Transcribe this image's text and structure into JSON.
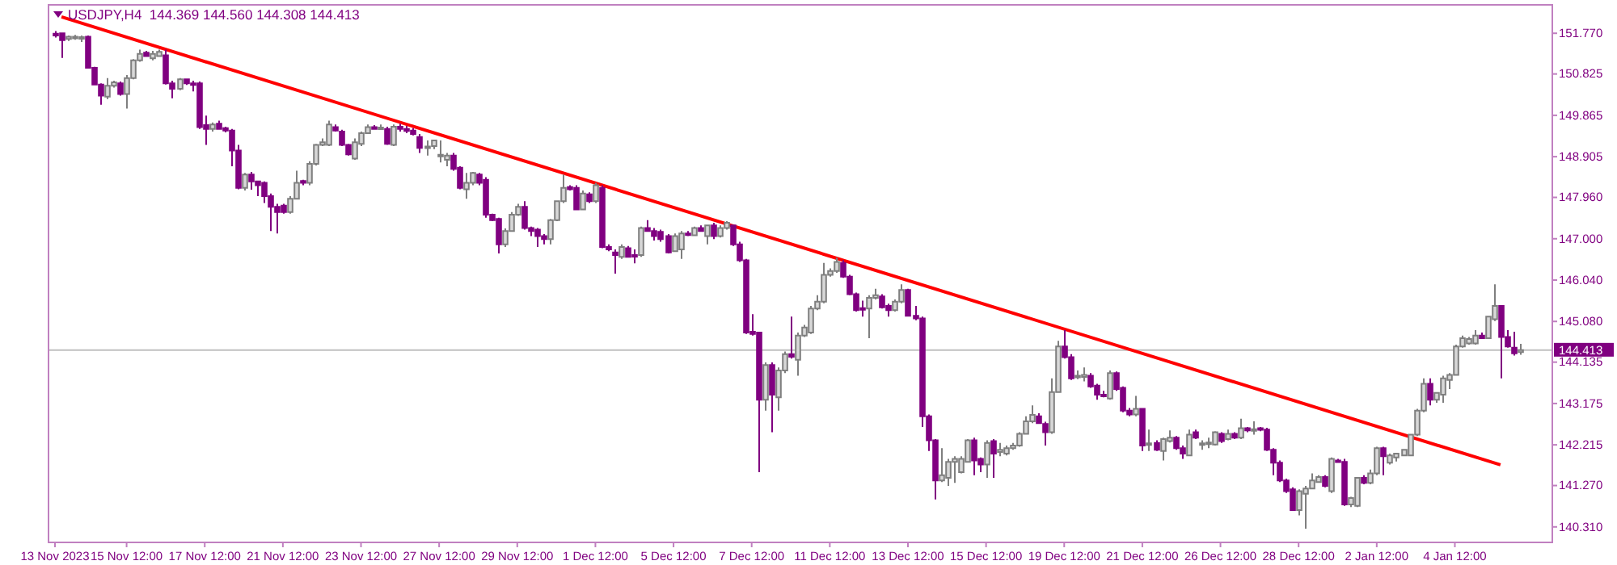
{
  "chart_data": {
    "type": "candlestick",
    "title": "USDJPY,H4  144.369 144.560 144.308 144.413",
    "ylim": [
      139.95,
      152.43
    ],
    "categories": [
      "13 Nov 2023",
      null,
      null,
      null,
      null,
      null,
      null,
      null,
      null,
      null,
      null,
      "15 Nov 12:00",
      null,
      null,
      null,
      null,
      null,
      null,
      null,
      null,
      null,
      null,
      null,
      "17 Nov 12:00",
      null,
      null,
      null,
      null,
      null,
      null,
      null,
      null,
      null,
      null,
      null,
      "21 Nov 12:00",
      null,
      null,
      null,
      null,
      null,
      null,
      null,
      null,
      null,
      null,
      null,
      "23 Nov 12:00",
      null,
      null,
      null,
      null,
      null,
      null,
      null,
      null,
      null,
      null,
      null,
      "27 Nov 12:00",
      null,
      null,
      null,
      null,
      null,
      null,
      null,
      null,
      null,
      null,
      null,
      "29 Nov 12:00",
      null,
      null,
      null,
      null,
      null,
      null,
      null,
      null,
      null,
      null,
      null,
      "1 Dec 12:00",
      null,
      null,
      null,
      null,
      null,
      null,
      null,
      null,
      null,
      null,
      null,
      "5 Dec 12:00",
      null,
      null,
      null,
      null,
      null,
      null,
      null,
      null,
      null,
      null,
      null,
      "7 Dec 12:00",
      null,
      null,
      null,
      null,
      null,
      null,
      null,
      null,
      null,
      null,
      null,
      "11 Dec 12:00",
      null,
      null,
      null,
      null,
      null,
      null,
      null,
      null,
      null,
      null,
      null,
      "13 Dec 12:00",
      null,
      null,
      null,
      null,
      null,
      null,
      null,
      null,
      null,
      null,
      null,
      "15 Dec 12:00",
      null,
      null,
      null,
      null,
      null,
      null,
      null,
      null,
      null,
      null,
      null,
      "19 Dec 12:00",
      null,
      null,
      null,
      null,
      null,
      null,
      null,
      null,
      null,
      null,
      null,
      "21 Dec 12:00",
      null,
      null,
      null,
      null,
      null,
      null,
      null,
      null,
      null,
      null,
      null,
      "26 Dec 12:00",
      null,
      null,
      null,
      null,
      null,
      null,
      null,
      null,
      null,
      null,
      null,
      "28 Dec 12:00",
      null,
      null,
      null,
      null,
      null,
      null,
      null,
      null,
      null,
      null,
      null,
      "2 Jan 12:00",
      null,
      null,
      null,
      null,
      null,
      null,
      null,
      null,
      null,
      null,
      null,
      "4 Jan 12:00",
      null,
      null,
      null,
      null,
      null,
      null,
      null,
      null,
      null,
      null
    ],
    "yticks": [
      {
        "value": 151.77,
        "label": "151.770"
      },
      {
        "value": 150.825,
        "label": "150.825"
      },
      {
        "value": 149.865,
        "label": "149.865"
      },
      {
        "value": 148.905,
        "label": "148.905"
      },
      {
        "value": 147.96,
        "label": "147.960"
      },
      {
        "value": 147.0,
        "label": "147.000"
      },
      {
        "value": 146.04,
        "label": "146.040"
      },
      {
        "value": 145.08,
        "label": "145.080"
      },
      {
        "value": 144.135,
        "label": "144.135"
      },
      {
        "value": 143.175,
        "label": "143.175"
      },
      {
        "value": 142.215,
        "label": "142.215"
      },
      {
        "value": 141.27,
        "label": "141.270"
      },
      {
        "value": 140.31,
        "label": "140.310"
      }
    ],
    "ref_lines": [
      {
        "axis": "y",
        "value": 144.413,
        "label": "144.413",
        "color": "#c0c0c0"
      }
    ],
    "series": [
      {
        "colors": [
          "#800080",
          "#800080",
          "#d8d8d8",
          "#d8d8d8",
          "#d8d8d8",
          "#800080",
          "#800080",
          "#800080",
          "#d8d8d8",
          "#d8d8d8",
          "#800080",
          "#d8d8d8",
          "#d8d8d8",
          "#d8d8d8",
          "#800080",
          "#d8d8d8",
          "#d8d8d8",
          "#800080",
          "#800080",
          "#d8d8d8",
          "#800080",
          "#800080",
          "#800080",
          "#800080",
          "#d8d8d8",
          "#800080",
          "#800080",
          "#800080",
          "#800080",
          "#d8d8d8",
          "#800080",
          "#800080",
          "#800080",
          "#800080",
          "#800080",
          "#800080",
          "#d8d8d8",
          "#d8d8d8",
          "#800080",
          "#d8d8d8",
          "#d8d8d8",
          "#d8d8d8",
          "#d8d8d8",
          "#800080",
          "#800080",
          "#800080",
          "#d8d8d8",
          "#d8d8d8",
          "#d8d8d8",
          "#800080",
          "#d8d8d8",
          "#800080",
          "#d8d8d8",
          "#800080",
          "#800080",
          "#800080",
          "#800080",
          "#d8d8d8",
          "#d8d8d8",
          "#d8d8d8",
          "#d8d8d8",
          "#800080",
          "#800080",
          "#d8d8d8",
          "#d8d8d8",
          "#800080",
          "#800080",
          "#800080",
          "#800080",
          "#d8d8d8",
          "#d8d8d8",
          "#d8d8d8",
          "#800080",
          "#800080",
          "#800080",
          "#800080",
          "#d8d8d8",
          "#d8d8d8",
          "#d8d8d8",
          "#800080",
          "#800080",
          "#d8d8d8",
          "#800080",
          "#d8d8d8",
          "#800080",
          "#800080",
          "#800080",
          "#d8d8d8",
          "#800080",
          "#800080",
          "#d8d8d8",
          "#800080",
          "#800080",
          "#800080",
          "#800080",
          "#d8d8d8",
          "#d8d8d8",
          "#800080",
          "#d8d8d8",
          "#800080",
          "#d8d8d8",
          "#800080",
          "#d8d8d8",
          "#d8d8d8",
          "#800080",
          "#800080",
          "#800080",
          "#800080",
          "#800080",
          "#d8d8d8",
          "#800080",
          "#d8d8d8",
          "#d8d8d8",
          "#800080",
          "#d8d8d8",
          "#d8d8d8",
          "#d8d8d8",
          "#d8d8d8",
          "#d8d8d8",
          "#d8d8d8",
          "#d8d8d8",
          "#800080",
          "#800080",
          "#800080",
          "#800080",
          "#d8d8d8",
          "#d8d8d8",
          "#800080",
          "#800080",
          "#d8d8d8",
          "#d8d8d8",
          "#800080",
          "#800080",
          "#800080",
          "#800080",
          "#800080",
          "#d8d8d8",
          "#d8d8d8",
          "#d8d8d8",
          "#d8d8d8",
          "#d8d8d8",
          "#800080",
          "#800080",
          "#d8d8d8",
          "#800080",
          "#d8d8d8",
          "#d8d8d8",
          "#d8d8d8",
          "#d8d8d8",
          "#d8d8d8",
          "#d8d8d8",
          "#800080",
          "#800080",
          "#d8d8d8",
          "#d8d8d8",
          "#800080",
          "#800080",
          "#d8d8d8",
          "#d8d8d8",
          "#800080",
          "#800080",
          "#800080",
          "#d8d8d8",
          "#800080",
          "#800080",
          "#800080",
          "#d8d8d8",
          "#800080",
          "#d8d8d8",
          "#800080",
          "#d8d8d8",
          "#d8d8d8",
          "#800080",
          "#800080",
          "#d8d8d8",
          "#800080",
          "#d8d8d8",
          "#d8d8d8",
          "#d8d8d8",
          "#800080",
          "#d8d8d8",
          "#800080",
          "#d8d8d8",
          "#800080",
          "#d8d8d8",
          "#800080",
          "#800080",
          "#800080",
          "#800080",
          "#800080",
          "#800080",
          "#d8d8d8",
          "#d8d8d8",
          "#d8d8d8",
          "#d8d8d8",
          "#800080",
          "#d8d8d8",
          "#800080",
          "#800080",
          "#d8d8d8",
          "#d8d8d8",
          "#800080",
          "#d8d8d8",
          "#d8d8d8",
          "#800080",
          "#d8d8d8",
          "#d8d8d8",
          "#d8d8d8",
          "#d8d8d8",
          "#d8d8d8",
          "#d8d8d8",
          "#800080",
          "#d8d8d8",
          "#d8d8d8",
          "#d8d8d8",
          "#d8d8d8",
          "#d8d8d8",
          "#d8d8d8",
          "#d8d8d8",
          "#800080",
          "#d8d8d8",
          "#d8d8d8",
          "#800080",
          "#800080",
          "#800080",
          "#d8d8d8"
        ],
        "ohlc": [
          [
            151.76,
            151.82,
            151.67,
            151.72
          ],
          [
            151.77,
            151.79,
            151.2,
            151.61
          ],
          [
            151.64,
            151.72,
            151.59,
            151.69
          ],
          [
            151.67,
            151.73,
            151.62,
            151.69
          ],
          [
            151.67,
            151.72,
            151.57,
            151.68
          ],
          [
            151.69,
            151.72,
            150.95,
            150.97
          ],
          [
            150.97,
            150.99,
            150.57,
            150.58
          ],
          [
            150.58,
            150.61,
            150.11,
            150.32
          ],
          [
            150.3,
            150.73,
            150.24,
            150.55
          ],
          [
            150.55,
            150.67,
            150.51,
            150.63
          ],
          [
            150.61,
            150.65,
            150.32,
            150.36
          ],
          [
            150.36,
            150.8,
            150.02,
            150.73
          ],
          [
            150.73,
            151.17,
            150.7,
            151.14
          ],
          [
            151.14,
            151.39,
            151.11,
            151.29
          ],
          [
            151.32,
            151.36,
            151.22,
            151.24
          ],
          [
            151.19,
            151.36,
            151.14,
            151.29
          ],
          [
            151.24,
            151.39,
            151.22,
            151.34
          ],
          [
            151.26,
            151.39,
            150.58,
            150.61
          ],
          [
            150.61,
            150.67,
            150.26,
            150.48
          ],
          [
            150.48,
            150.73,
            150.45,
            150.7
          ],
          [
            150.7,
            150.72,
            150.57,
            150.61
          ],
          [
            150.61,
            150.67,
            150.42,
            150.6
          ],
          [
            150.61,
            150.65,
            149.55,
            149.59
          ],
          [
            149.64,
            149.86,
            149.18,
            149.55
          ],
          [
            149.55,
            149.7,
            149.49,
            149.65
          ],
          [
            149.67,
            149.74,
            149.53,
            149.55
          ],
          [
            149.57,
            149.6,
            149.47,
            149.51
          ],
          [
            149.51,
            149.55,
            148.68,
            149.05
          ],
          [
            149.05,
            149.18,
            148.15,
            148.18
          ],
          [
            148.18,
            148.53,
            148.12,
            148.49
          ],
          [
            148.49,
            148.55,
            148.14,
            148.33
          ],
          [
            148.33,
            148.35,
            147.99,
            148.24
          ],
          [
            148.3,
            148.33,
            147.83,
            147.99
          ],
          [
            147.99,
            148.05,
            147.18,
            147.74
          ],
          [
            147.74,
            147.81,
            147.12,
            147.62
          ],
          [
            147.77,
            147.81,
            147.58,
            147.62
          ],
          [
            147.62,
            147.99,
            147.58,
            147.93
          ],
          [
            147.93,
            148.58,
            147.91,
            148.3
          ],
          [
            148.34,
            148.37,
            148.24,
            148.3
          ],
          [
            148.3,
            148.8,
            148.24,
            148.74
          ],
          [
            148.74,
            149.2,
            148.7,
            149.18
          ],
          [
            149.18,
            149.33,
            149.15,
            149.24
          ],
          [
            149.18,
            149.74,
            149.15,
            149.65
          ],
          [
            149.59,
            149.65,
            149.49,
            149.51
          ],
          [
            149.49,
            149.53,
            149.15,
            149.18
          ],
          [
            149.18,
            149.2,
            148.93,
            148.96
          ],
          [
            148.86,
            149.33,
            148.83,
            149.24
          ],
          [
            149.2,
            149.49,
            149.15,
            149.45
          ],
          [
            149.45,
            149.65,
            149.43,
            149.59
          ],
          [
            149.59,
            149.64,
            149.53,
            149.55
          ],
          [
            149.57,
            149.65,
            149.53,
            149.58
          ],
          [
            149.55,
            149.6,
            149.18,
            149.2
          ],
          [
            149.18,
            149.65,
            149.15,
            149.6
          ],
          [
            149.6,
            149.67,
            149.49,
            149.55
          ],
          [
            149.55,
            149.62,
            149.45,
            149.5
          ],
          [
            149.51,
            149.57,
            149.4,
            149.43
          ],
          [
            149.36,
            149.43,
            148.99,
            149.11
          ],
          [
            149.11,
            149.28,
            148.93,
            149.14
          ],
          [
            149.15,
            149.3,
            149.08,
            149.28
          ],
          [
            148.93,
            149.28,
            148.77,
            148.95
          ],
          [
            148.83,
            148.99,
            148.68,
            148.93
          ],
          [
            148.93,
            148.99,
            148.58,
            148.62
          ],
          [
            148.65,
            148.68,
            148.15,
            148.18
          ],
          [
            148.15,
            148.53,
            147.93,
            148.3
          ],
          [
            148.3,
            148.55,
            148.24,
            148.53
          ],
          [
            148.49,
            148.53,
            148.24,
            148.3
          ],
          [
            148.37,
            148.43,
            147.49,
            147.56
          ],
          [
            147.56,
            147.58,
            147.41,
            147.43
          ],
          [
            147.46,
            147.49,
            146.66,
            146.87
          ],
          [
            146.87,
            147.24,
            146.81,
            147.18
          ],
          [
            147.18,
            147.62,
            147.16,
            147.56
          ],
          [
            147.56,
            147.81,
            147.53,
            147.74
          ],
          [
            147.74,
            147.87,
            147.21,
            147.25
          ],
          [
            147.25,
            147.28,
            147.06,
            147.18
          ],
          [
            147.21,
            147.25,
            146.81,
            147.06
          ],
          [
            147.06,
            147.11,
            146.87,
            146.99
          ],
          [
            146.99,
            147.46,
            146.87,
            147.43
          ],
          [
            147.43,
            147.89,
            147.41,
            147.87
          ],
          [
            147.87,
            148.49,
            147.83,
            148.18
          ],
          [
            148.2,
            148.24,
            148.12,
            148.15
          ],
          [
            148.18,
            148.24,
            147.66,
            147.68
          ],
          [
            147.68,
            148.12,
            147.66,
            148.05
          ],
          [
            148.03,
            148.08,
            147.83,
            147.87
          ],
          [
            147.87,
            148.3,
            147.83,
            148.24
          ],
          [
            148.18,
            148.24,
            146.78,
            146.81
          ],
          [
            146.81,
            146.87,
            146.71,
            146.75
          ],
          [
            146.68,
            146.75,
            146.19,
            146.62
          ],
          [
            146.58,
            146.87,
            146.53,
            146.81
          ],
          [
            146.78,
            146.83,
            146.56,
            146.58
          ],
          [
            146.62,
            146.75,
            146.43,
            146.61
          ],
          [
            146.62,
            147.28,
            146.58,
            147.25
          ],
          [
            147.25,
            147.43,
            147.16,
            147.18
          ],
          [
            147.18,
            147.25,
            146.96,
            147.06
          ],
          [
            147.16,
            147.21,
            146.93,
            146.99
          ],
          [
            147.06,
            147.11,
            146.66,
            146.68
          ],
          [
            146.71,
            147.12,
            146.7,
            147.06
          ],
          [
            146.75,
            147.18,
            146.53,
            147.12
          ],
          [
            147.12,
            147.18,
            147.06,
            147.1
          ],
          [
            147.08,
            147.28,
            147.06,
            147.25
          ],
          [
            147.25,
            147.31,
            147.16,
            147.18
          ],
          [
            147.06,
            147.33,
            146.87,
            147.31
          ],
          [
            147.31,
            147.37,
            146.99,
            147.06
          ],
          [
            147.06,
            147.31,
            147.03,
            147.25
          ],
          [
            147.25,
            147.41,
            147.21,
            147.37
          ],
          [
            147.31,
            147.33,
            146.83,
            146.87
          ],
          [
            146.87,
            146.93,
            146.46,
            146.5
          ],
          [
            146.5,
            146.53,
            144.79,
            144.82
          ],
          [
            144.84,
            145.25,
            144.75,
            144.79
          ],
          [
            144.82,
            144.84,
            141.58,
            143.26
          ],
          [
            143.26,
            144.13,
            143.01,
            144.07
          ],
          [
            144.07,
            144.13,
            142.51,
            143.38
          ],
          [
            143.32,
            144.01,
            143.01,
            143.94
          ],
          [
            143.94,
            144.38,
            143.88,
            144.32
          ],
          [
            144.32,
            145.19,
            144.22,
            144.26
          ],
          [
            144.19,
            144.82,
            143.82,
            144.75
          ],
          [
            144.75,
            145.0,
            144.72,
            144.94
          ],
          [
            144.82,
            145.44,
            144.79,
            145.38
          ],
          [
            145.38,
            145.69,
            145.34,
            145.54
          ],
          [
            145.54,
            146.44,
            145.5,
            146.16
          ],
          [
            146.16,
            146.31,
            146.12,
            146.25
          ],
          [
            146.25,
            146.56,
            146.21,
            146.46
          ],
          [
            146.44,
            146.5,
            146.09,
            146.12
          ],
          [
            146.12,
            146.16,
            145.69,
            145.71
          ],
          [
            145.71,
            145.75,
            145.31,
            145.34
          ],
          [
            145.39,
            145.56,
            145.19,
            145.36
          ],
          [
            145.38,
            145.69,
            144.69,
            145.63
          ],
          [
            145.63,
            145.84,
            145.59,
            145.69
          ],
          [
            145.66,
            145.71,
            145.38,
            145.41
          ],
          [
            145.44,
            145.49,
            145.19,
            145.34
          ],
          [
            145.34,
            145.59,
            145.31,
            145.54
          ],
          [
            145.54,
            145.94,
            145.5,
            145.81
          ],
          [
            145.81,
            145.84,
            145.19,
            145.21
          ],
          [
            145.21,
            145.44,
            145.11,
            145.15
          ],
          [
            145.15,
            145.19,
            142.63,
            142.88
          ],
          [
            142.88,
            142.92,
            142.07,
            142.32
          ],
          [
            142.32,
            142.35,
            140.95,
            141.39
          ],
          [
            141.39,
            142.14,
            141.35,
            141.51
          ],
          [
            141.45,
            141.89,
            141.26,
            141.82
          ],
          [
            141.82,
            141.95,
            141.33,
            141.89
          ],
          [
            141.58,
            141.95,
            141.55,
            141.89
          ],
          [
            141.82,
            142.35,
            141.8,
            142.32
          ],
          [
            142.32,
            142.38,
            141.51,
            141.85
          ],
          [
            141.89,
            141.92,
            141.58,
            141.76
          ],
          [
            141.76,
            142.32,
            141.45,
            142.26
          ],
          [
            142.3,
            142.35,
            141.45,
            142.01
          ],
          [
            142.05,
            142.26,
            141.95,
            142.1
          ],
          [
            142.01,
            142.2,
            141.97,
            142.14
          ],
          [
            142.14,
            142.26,
            142.1,
            142.2
          ],
          [
            142.2,
            142.51,
            142.17,
            142.47
          ],
          [
            142.47,
            142.88,
            142.45,
            142.76
          ],
          [
            142.76,
            143.13,
            142.72,
            142.91
          ],
          [
            142.88,
            142.95,
            142.7,
            142.72
          ],
          [
            142.7,
            142.75,
            142.2,
            142.51
          ],
          [
            142.51,
            143.76,
            142.47,
            143.44
          ],
          [
            143.44,
            144.63,
            143.42,
            144.5
          ],
          [
            144.5,
            144.88,
            144.22,
            144.25
          ],
          [
            144.25,
            144.32,
            143.72,
            143.76
          ],
          [
            143.79,
            143.94,
            143.74,
            143.82
          ],
          [
            143.79,
            144.01,
            143.69,
            143.84
          ],
          [
            143.82,
            143.88,
            143.54,
            143.57
          ],
          [
            143.59,
            143.63,
            143.26,
            143.38
          ],
          [
            143.38,
            143.47,
            143.32,
            143.34
          ],
          [
            143.29,
            143.94,
            143.26,
            143.88
          ],
          [
            143.88,
            143.92,
            143.47,
            143.51
          ],
          [
            143.54,
            143.57,
            142.97,
            143.01
          ],
          [
            143.01,
            143.07,
            142.88,
            142.92
          ],
          [
            142.92,
            143.35,
            142.88,
            143.05
          ],
          [
            143.05,
            143.07,
            142.07,
            142.2
          ],
          [
            142.22,
            142.57,
            142.07,
            142.25
          ],
          [
            142.26,
            142.32,
            142.07,
            142.1
          ],
          [
            142.07,
            142.38,
            141.85,
            142.35
          ],
          [
            142.3,
            142.55,
            142.27,
            142.38
          ],
          [
            142.38,
            142.42,
            142.1,
            142.14
          ],
          [
            142.14,
            142.2,
            141.89,
            142.01
          ],
          [
            141.97,
            142.57,
            141.95,
            142.45
          ],
          [
            142.51,
            142.57,
            142.35,
            142.38
          ],
          [
            142.22,
            142.32,
            142.1,
            142.25
          ],
          [
            142.25,
            142.38,
            142.14,
            142.27
          ],
          [
            142.22,
            142.53,
            142.2,
            142.51
          ],
          [
            142.47,
            142.51,
            142.26,
            142.3
          ],
          [
            142.35,
            142.57,
            142.32,
            142.47
          ],
          [
            142.47,
            142.51,
            142.35,
            142.38
          ],
          [
            142.38,
            142.82,
            142.35,
            142.6
          ],
          [
            142.6,
            142.63,
            142.51,
            142.55
          ],
          [
            142.57,
            142.76,
            142.45,
            142.58
          ],
          [
            142.6,
            142.63,
            142.53,
            142.57
          ],
          [
            142.57,
            142.61,
            142.07,
            142.1
          ],
          [
            142.1,
            142.14,
            141.51,
            141.8
          ],
          [
            141.8,
            141.85,
            141.35,
            141.39
          ],
          [
            141.39,
            141.43,
            141.1,
            141.14
          ],
          [
            141.18,
            141.23,
            140.68,
            140.7
          ],
          [
            140.7,
            141.18,
            140.58,
            141.14
          ],
          [
            141.08,
            141.26,
            140.27,
            141.2
          ],
          [
            141.2,
            141.55,
            141.18,
            141.39
          ],
          [
            141.35,
            141.51,
            141.33,
            141.47
          ],
          [
            141.47,
            141.51,
            141.23,
            141.26
          ],
          [
            141.14,
            141.92,
            141.1,
            141.89
          ],
          [
            141.85,
            141.89,
            141.8,
            141.82
          ],
          [
            141.82,
            141.89,
            140.8,
            140.83
          ],
          [
            140.83,
            141.01,
            140.77,
            140.98
          ],
          [
            140.8,
            141.47,
            140.77,
            141.45
          ],
          [
            141.45,
            141.51,
            141.3,
            141.33
          ],
          [
            141.33,
            141.64,
            141.3,
            141.55
          ],
          [
            141.55,
            142.17,
            141.51,
            142.14
          ],
          [
            142.14,
            142.17,
            141.51,
            141.95
          ],
          [
            141.8,
            142.01,
            141.76,
            141.97
          ],
          [
            141.92,
            142.01,
            141.83,
            142.01
          ],
          [
            141.97,
            142.12,
            141.95,
            142.1
          ],
          [
            141.97,
            142.47,
            141.95,
            142.45
          ],
          [
            142.45,
            143.05,
            142.42,
            143.01
          ],
          [
            143.01,
            143.76,
            142.97,
            143.63
          ],
          [
            143.63,
            143.76,
            143.13,
            143.26
          ],
          [
            143.26,
            143.44,
            143.19,
            143.42
          ],
          [
            143.38,
            143.82,
            143.19,
            143.76
          ],
          [
            143.72,
            143.88,
            143.51,
            143.84
          ],
          [
            143.84,
            144.54,
            143.82,
            144.5
          ],
          [
            144.5,
            144.75,
            144.47,
            144.69
          ],
          [
            144.57,
            144.72,
            144.54,
            144.67
          ],
          [
            144.57,
            144.88,
            144.54,
            144.75
          ],
          [
            144.75,
            144.82,
            144.67,
            144.69
          ],
          [
            144.69,
            145.21,
            144.67,
            145.19
          ],
          [
            145.13,
            145.94,
            145.09,
            145.44
          ],
          [
            145.44,
            145.46,
            143.76,
            144.72
          ],
          [
            144.72,
            144.88,
            144.47,
            144.5
          ],
          [
            144.47,
            144.84,
            144.29,
            144.34
          ],
          [
            144.369,
            144.56,
            144.308,
            144.413
          ]
        ]
      },
      {
        "type": "line",
        "color": "#ff0000",
        "values": [
          null,
          152.15,
          null,
          null,
          null,
          null,
          null,
          null,
          null,
          null,
          null,
          null,
          null,
          null,
          null,
          null,
          null,
          null,
          null,
          null,
          null,
          null,
          null,
          null,
          null,
          null,
          null,
          null,
          null,
          null,
          null,
          null,
          null,
          null,
          null,
          null,
          null,
          null,
          null,
          null,
          null,
          null,
          null,
          null,
          null,
          null,
          null,
          null,
          null,
          null,
          null,
          null,
          null,
          null,
          null,
          null,
          null,
          null,
          null,
          null,
          null,
          null,
          null,
          null,
          null,
          null,
          null,
          null,
          null,
          null,
          null,
          null,
          null,
          null,
          null,
          null,
          null,
          null,
          null,
          null,
          null,
          null,
          null,
          null,
          null,
          null,
          null,
          null,
          null,
          null,
          null,
          null,
          null,
          null,
          null,
          null,
          null,
          null,
          null,
          null,
          null,
          null,
          null,
          null,
          null,
          null,
          null,
          null,
          null,
          null,
          null,
          null,
          null,
          null,
          null,
          null,
          null,
          null,
          null,
          null,
          null,
          null,
          null,
          null,
          null,
          null,
          null,
          null,
          null,
          null,
          null,
          null,
          null,
          null,
          null,
          null,
          null,
          null,
          null,
          null,
          null,
          null,
          null,
          null,
          null,
          null,
          null,
          null,
          null,
          null,
          null,
          null,
          null,
          null,
          null,
          null,
          null,
          null,
          null,
          null,
          null,
          null,
          null,
          null,
          null,
          null,
          null,
          null,
          null,
          null,
          null,
          null,
          null,
          null,
          null,
          null,
          null,
          null,
          null,
          null,
          null,
          null,
          null,
          null,
          null,
          null,
          null,
          null,
          null,
          null,
          null,
          null,
          null,
          null,
          null,
          null,
          null,
          null,
          null,
          null,
          null,
          null,
          null,
          null,
          null,
          null,
          null,
          null,
          null,
          null,
          null,
          null,
          null,
          null,
          null,
          null,
          null,
          null,
          null,
          null,
          null,
          null,
          141.75,
          null,
          null,
          null
        ]
      }
    ]
  }
}
